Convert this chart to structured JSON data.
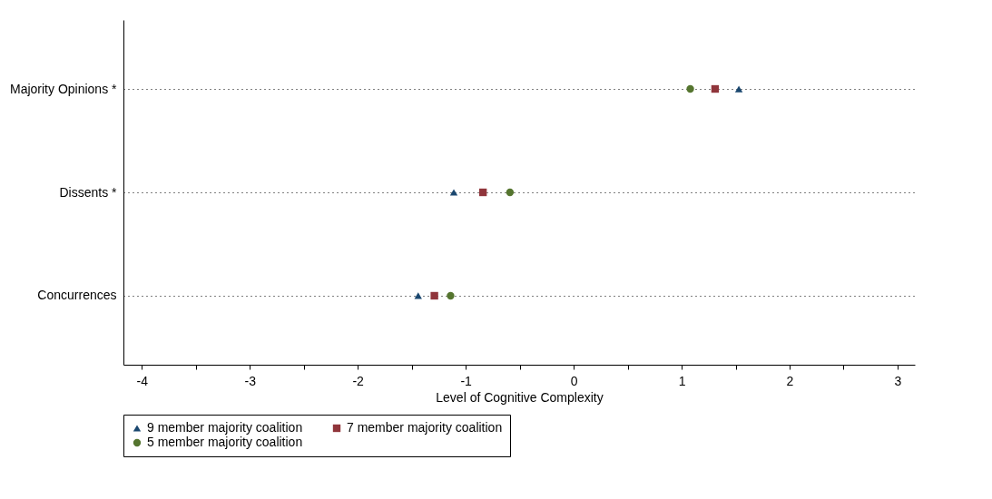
{
  "chart_data": {
    "type": "scatter",
    "xlabel": "Level of Cognitive Complexity",
    "categories": [
      "Majority Opinions *",
      "Dissents *",
      "Concurrences"
    ],
    "orientation": "horizontal",
    "series": [
      {
        "name": "9 member majority coalition",
        "color": "#1a476f",
        "marker": "triangle",
        "values": [
          1.53,
          -1.11,
          -1.44
        ]
      },
      {
        "name": "7 member majority coalition",
        "color": "#90353b",
        "marker": "square",
        "values": [
          1.31,
          -0.84,
          -1.29
        ]
      },
      {
        "name": "5 member majority coalition",
        "color": "#55752f",
        "marker": "circle",
        "values": [
          1.08,
          -0.59,
          -1.14
        ]
      }
    ],
    "xlim": [
      -4.17,
      3.16
    ],
    "xticks": [
      -4,
      {
        "value": -3.5,
        "label": null
      },
      -3,
      {
        "value": -2.5,
        "label": null
      },
      -2,
      {
        "value": -1.5,
        "label": null
      },
      -1,
      {
        "value": -0.5,
        "label": null
      },
      0,
      {
        "value": 0.5,
        "label": null
      },
      1,
      {
        "value": 1.5,
        "label": null
      },
      2,
      {
        "value": 2.5,
        "label": null
      },
      3
    ],
    "grid": "y",
    "legend": "bottom"
  }
}
